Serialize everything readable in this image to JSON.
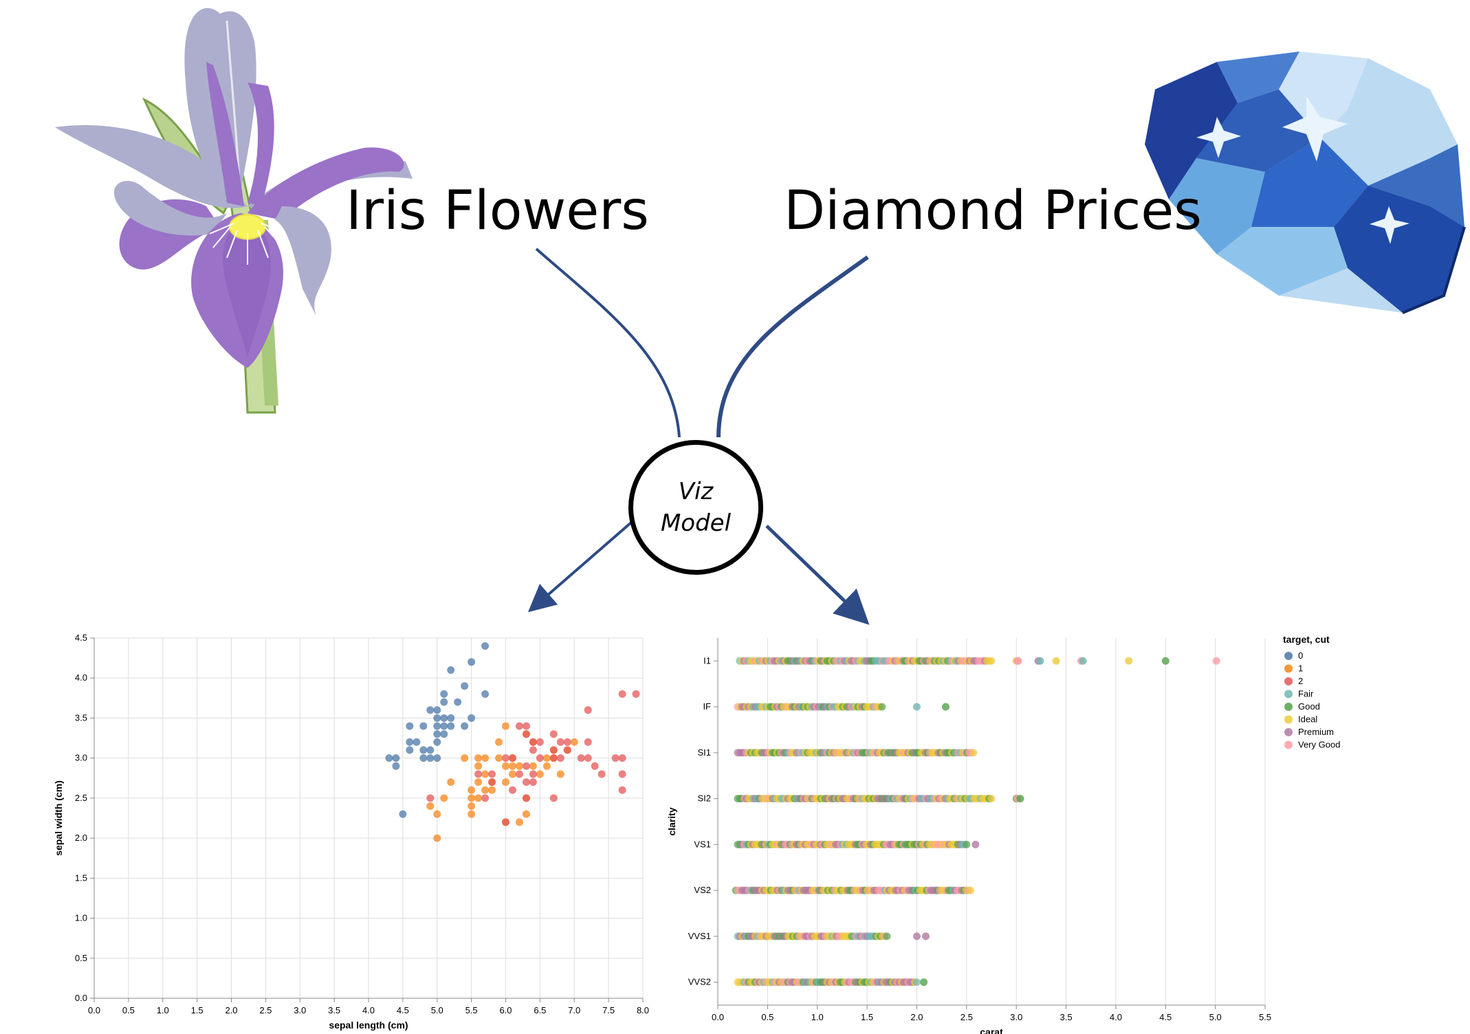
{
  "titles": {
    "left": "Iris Flowers",
    "right": "Diamond Prices"
  },
  "node": {
    "line1": "Viz",
    "line2": "Model"
  },
  "icons": {
    "left": "iris-flower-icon",
    "right": "diamond-icon"
  },
  "colors": {
    "0": "#4c78a8",
    "1": "#f58518",
    "2": "#e45756",
    "Fair": "#72b7b2",
    "Good": "#54a24b",
    "Ideal": "#eeca3b",
    "Premium": "#b279a2",
    "Very Good": "#ff9da6",
    "connector": "#2f4b85",
    "iris_petal": "#9a72c8",
    "iris_sepal": "#adaecd",
    "diamond_light": "#bcdaf2",
    "diamond_dark": "#1f3f9a"
  },
  "chart_data": [
    {
      "type": "scatter",
      "xlabel": "sepal length (cm)",
      "ylabel": "sepal width (cm)",
      "xlim": [
        0,
        8
      ],
      "ylim": [
        0,
        4.5
      ],
      "xticks": [
        "0.0",
        "0.5",
        "1.0",
        "1.5",
        "2.0",
        "2.5",
        "3.0",
        "3.5",
        "4.0",
        "4.5",
        "5.0",
        "5.5",
        "6.0",
        "6.5",
        "7.0",
        "7.5",
        "8.0"
      ],
      "yticks": [
        "0.0",
        "0.5",
        "1.0",
        "1.5",
        "2.0",
        "2.5",
        "3.0",
        "3.5",
        "4.0",
        "4.5"
      ],
      "grid": true,
      "series": [
        {
          "name": "0",
          "points": [
            [
              4.3,
              3.0
            ],
            [
              4.4,
              2.9
            ],
            [
              4.4,
              3.0
            ],
            [
              4.5,
              2.3
            ],
            [
              4.6,
              3.1
            ],
            [
              4.6,
              3.2
            ],
            [
              4.6,
              3.4
            ],
            [
              4.7,
              3.2
            ],
            [
              4.8,
              3.0
            ],
            [
              4.8,
              3.1
            ],
            [
              4.8,
              3.4
            ],
            [
              4.9,
              3.0
            ],
            [
              4.9,
              3.1
            ],
            [
              4.9,
              3.6
            ],
            [
              5.0,
              3.0
            ],
            [
              5.0,
              3.2
            ],
            [
              5.0,
              3.3
            ],
            [
              5.0,
              3.4
            ],
            [
              5.0,
              3.5
            ],
            [
              5.0,
              3.6
            ],
            [
              5.1,
              3.3
            ],
            [
              5.1,
              3.4
            ],
            [
              5.1,
              3.5
            ],
            [
              5.1,
              3.7
            ],
            [
              5.1,
              3.8
            ],
            [
              5.2,
              3.4
            ],
            [
              5.2,
              3.5
            ],
            [
              5.2,
              4.1
            ],
            [
              5.3,
              3.7
            ],
            [
              5.4,
              3.4
            ],
            [
              5.4,
              3.9
            ],
            [
              5.5,
              3.5
            ],
            [
              5.5,
              4.2
            ],
            [
              5.7,
              3.8
            ],
            [
              5.7,
              4.4
            ]
          ]
        },
        {
          "name": "1",
          "points": [
            [
              4.9,
              2.4
            ],
            [
              5.0,
              2.0
            ],
            [
              5.0,
              2.3
            ],
            [
              5.1,
              2.5
            ],
            [
              5.2,
              2.7
            ],
            [
              5.4,
              3.0
            ],
            [
              5.5,
              2.3
            ],
            [
              5.5,
              2.4
            ],
            [
              5.5,
              2.5
            ],
            [
              5.5,
              2.6
            ],
            [
              5.6,
              2.5
            ],
            [
              5.6,
              2.7
            ],
            [
              5.6,
              2.9
            ],
            [
              5.6,
              3.0
            ],
            [
              5.7,
              2.6
            ],
            [
              5.7,
              2.8
            ],
            [
              5.7,
              3.0
            ],
            [
              5.8,
              2.6
            ],
            [
              5.8,
              2.7
            ],
            [
              5.9,
              3.0
            ],
            [
              5.9,
              3.2
            ],
            [
              6.0,
              2.2
            ],
            [
              6.0,
              2.7
            ],
            [
              6.0,
              2.9
            ],
            [
              6.0,
              3.4
            ],
            [
              6.1,
              2.8
            ],
            [
              6.1,
              2.9
            ],
            [
              6.1,
              3.0
            ],
            [
              6.2,
              2.2
            ],
            [
              6.2,
              2.9
            ],
            [
              6.3,
              2.3
            ],
            [
              6.3,
              2.5
            ],
            [
              6.3,
              3.3
            ],
            [
              6.4,
              2.9
            ],
            [
              6.4,
              3.2
            ],
            [
              6.5,
              2.8
            ],
            [
              6.6,
              2.9
            ],
            [
              6.6,
              3.0
            ],
            [
              6.7,
              3.0
            ],
            [
              6.7,
              3.1
            ],
            [
              6.8,
              2.8
            ],
            [
              6.9,
              3.1
            ],
            [
              7.0,
              3.2
            ]
          ]
        },
        {
          "name": "2",
          "points": [
            [
              4.9,
              2.5
            ],
            [
              5.6,
              2.8
            ],
            [
              5.7,
              2.5
            ],
            [
              5.8,
              2.7
            ],
            [
              5.8,
              2.8
            ],
            [
              6.0,
              2.2
            ],
            [
              6.0,
              3.0
            ],
            [
              6.1,
              2.6
            ],
            [
              6.1,
              3.0
            ],
            [
              6.2,
              2.8
            ],
            [
              6.2,
              3.4
            ],
            [
              6.3,
              2.5
            ],
            [
              6.3,
              2.7
            ],
            [
              6.3,
              2.9
            ],
            [
              6.3,
              3.3
            ],
            [
              6.3,
              3.4
            ],
            [
              6.4,
              2.7
            ],
            [
              6.4,
              2.8
            ],
            [
              6.4,
              3.1
            ],
            [
              6.4,
              3.2
            ],
            [
              6.5,
              3.0
            ],
            [
              6.5,
              3.2
            ],
            [
              6.7,
              2.5
            ],
            [
              6.7,
              3.0
            ],
            [
              6.7,
              3.1
            ],
            [
              6.7,
              3.3
            ],
            [
              6.8,
              3.0
            ],
            [
              6.8,
              3.2
            ],
            [
              6.9,
              3.1
            ],
            [
              6.9,
              3.2
            ],
            [
              7.1,
              3.0
            ],
            [
              7.2,
              3.0
            ],
            [
              7.2,
              3.2
            ],
            [
              7.2,
              3.6
            ],
            [
              7.3,
              2.9
            ],
            [
              7.4,
              2.8
            ],
            [
              7.6,
              3.0
            ],
            [
              7.7,
              2.6
            ],
            [
              7.7,
              2.8
            ],
            [
              7.7,
              3.0
            ],
            [
              7.7,
              3.8
            ],
            [
              7.9,
              3.8
            ]
          ]
        }
      ]
    },
    {
      "type": "scatter",
      "xlabel": "carat",
      "ylabel": "clarity",
      "xlim": [
        0,
        5.5
      ],
      "xticks": [
        "0.0",
        "0.5",
        "1.0",
        "1.5",
        "2.0",
        "2.5",
        "3.0",
        "3.5",
        "4.0",
        "4.5",
        "5.0",
        "5.5"
      ],
      "categories": [
        "I1",
        "IF",
        "SI1",
        "SI2",
        "VS1",
        "VS2",
        "VVS1",
        "VVS2"
      ],
      "grid": true,
      "legend_title": "target, cut",
      "legend_position": "top-right",
      "legend": [
        "0",
        "1",
        "2",
        "Fair",
        "Good",
        "Ideal",
        "Premium",
        "Very Good"
      ],
      "ranges": [
        {
          "clarity": "I1",
          "min": 0.22,
          "max": 2.75,
          "outliers": [
            3.0,
            3.01,
            3.02,
            3.22,
            3.24,
            3.4,
            3.65,
            3.67,
            4.13,
            4.5,
            5.01
          ]
        },
        {
          "clarity": "IF",
          "min": 0.2,
          "max": 1.65,
          "outliers": [
            2.0,
            2.29
          ]
        },
        {
          "clarity": "SI1",
          "min": 0.2,
          "max": 2.57,
          "outliers": []
        },
        {
          "clarity": "SI2",
          "min": 0.2,
          "max": 2.75,
          "outliers": [
            3.0,
            3.01,
            3.04
          ]
        },
        {
          "clarity": "VS1",
          "min": 0.2,
          "max": 2.5,
          "outliers": [
            2.59
          ]
        },
        {
          "clarity": "VS2",
          "min": 0.18,
          "max": 2.54,
          "outliers": []
        },
        {
          "clarity": "VVS1",
          "min": 0.2,
          "max": 1.7,
          "outliers": [
            2.0,
            2.09
          ]
        },
        {
          "clarity": "VVS2",
          "min": 0.2,
          "max": 2.0,
          "outliers": [
            2.07
          ]
        }
      ]
    }
  ]
}
